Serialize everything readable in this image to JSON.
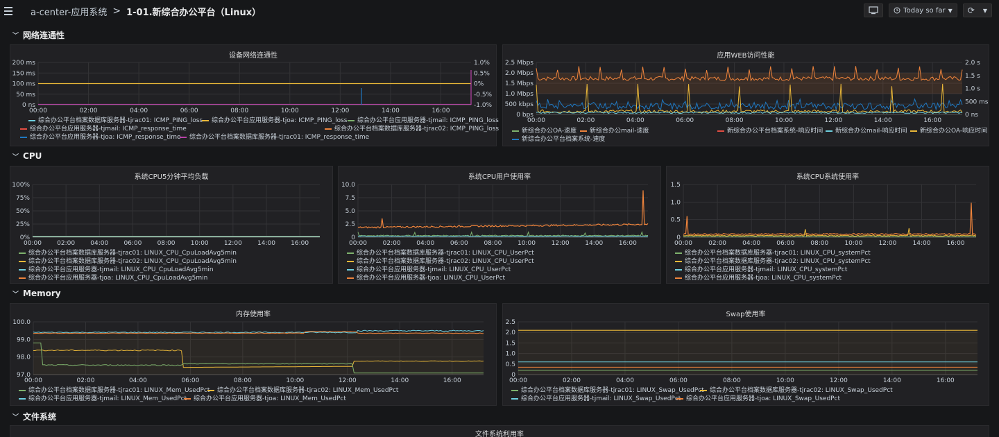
{
  "nav": {
    "folder": "a-center-应用系统",
    "separator": ">",
    "title": "1-01.新综合办公平台（Linux）",
    "time_range": "Today so far"
  },
  "colors": {
    "green": "#7eb26d",
    "yellow": "#eab839",
    "cyan": "#6ed0e0",
    "orange": "#ef843c",
    "red": "#e24d42",
    "blue": "#1f78c1",
    "purple": "#ba43a9"
  },
  "rows": {
    "network": "网络连通性",
    "cpu": "CPU",
    "memory": "Memory",
    "fs": "文件系统"
  },
  "x_ticks": [
    "00:00",
    "02:00",
    "04:00",
    "06:00",
    "08:00",
    "10:00",
    "12:00",
    "14:00",
    "16:00"
  ],
  "panels": {
    "ping": {
      "title": "设备网络连通性",
      "y_left": [
        "200 ms",
        "150 ms",
        "100 ms",
        "50 ms",
        "0 ns"
      ],
      "y_right": [
        "1.0%",
        "0.5%",
        "0%",
        "-0.5%",
        "-1.0%"
      ],
      "legend": [
        {
          "label": "综合办公平台档案数据库服务器-tjrac01: ICMP_PING_loss",
          "color": "#6ed0e0"
        },
        {
          "label": "综合办公平台应用服务器-tjoa: ICMP_PING_loss",
          "color": "#eab839"
        },
        {
          "label": "综合办公平台应用服务器-tjmail: ICMP_PING_loss",
          "color": "#7eb26d"
        },
        {
          "label": "综合办公平台应用服务器-tjmail: ICMP_response_time",
          "color": "#e24d42"
        },
        {
          "label": "综合办公平台档案数据库服务器-tjrac02: ICMP_PING_loss",
          "color": "#ef843c"
        },
        {
          "label": "综合办公平台应用服务器-tjoa: ICMP_response_time",
          "color": "#1f78c1"
        },
        {
          "label": "综合办公平台档案数据库服务器-tjrac01: ICMP_response_time",
          "color": "#ba43a9"
        }
      ]
    },
    "web": {
      "title": "应用WEB访问性能",
      "y_left": [
        "2.5 Mbps",
        "2.0 Mbps",
        "1.5 Mbps",
        "1.0 Mbps",
        "500 kbps",
        "0 bps"
      ],
      "y_right": [
        "2.0 s",
        "1.5 s",
        "1.0 s",
        "500 ms",
        "0 ns"
      ],
      "legend": [
        {
          "label": "新综合办公OA-速度",
          "color": "#7eb26d"
        },
        {
          "label": "新综合办公mail-速度",
          "color": "#ef843c"
        },
        {
          "label": "新综合办公平台档案系统-响应时间",
          "color": "#e24d42"
        },
        {
          "label": "新综合办公mail-响应时间",
          "color": "#6ed0e0"
        },
        {
          "label": "新综合办公OA-响应时间",
          "color": "#eab839"
        },
        {
          "label": "新综合办公平台档案系统-速度",
          "color": "#1f78c1"
        }
      ]
    },
    "load": {
      "title": "系统CPU5分钟平均负载",
      "y_left": [
        "100%",
        "75%",
        "50%",
        "25%",
        "0%"
      ],
      "legend": [
        {
          "label": "综合办公平台档案数据库服务器-tjrac01: LINUX_CPU_CpuLoadAvg5min",
          "color": "#7eb26d"
        },
        {
          "label": "综合办公平台档案数据库服务器-tjrac02: LINUX_CPU_CpuLoadAvg5min",
          "color": "#eab839"
        },
        {
          "label": "综合办公平台应用服务器-tjmail: LINUX_CPU_CpuLoadAvg5min",
          "color": "#6ed0e0"
        },
        {
          "label": "综合办公平台应用服务器-tjoa: LINUX_CPU_CpuLoadAvg5min",
          "color": "#ef843c"
        }
      ]
    },
    "cpuuser": {
      "title": "系统CPU用户使用率",
      "y_left": [
        "10.0",
        "7.5",
        "5.0",
        "2.5",
        "0"
      ],
      "legend": [
        {
          "label": "综合办公平台档案数据库服务器-tjrac01: LINUX_CPU_UserPct",
          "color": "#7eb26d"
        },
        {
          "label": "综合办公平台档案数据库服务器-tjrac02: LINUX_CPU_UserPct",
          "color": "#eab839"
        },
        {
          "label": "综合办公平台应用服务器-tjmail: LINUX_CPU_UserPct",
          "color": "#6ed0e0"
        },
        {
          "label": "综合办公平台应用服务器-tjoa: LINUX_CPU_UserPct",
          "color": "#ef843c"
        }
      ]
    },
    "cpusys": {
      "title": "系统CPU系统使用率",
      "y_left": [
        "1.5",
        "1.0",
        "0.5",
        "0"
      ],
      "legend": [
        {
          "label": "综合办公平台档案数据库服务器-tjrac01: LINUX_CPU_systemPct",
          "color": "#7eb26d"
        },
        {
          "label": "综合办公平台档案数据库服务器-tjrac02: LINUX_CPU_systemPct",
          "color": "#eab839"
        },
        {
          "label": "综合办公平台应用服务器-tjmail: LINUX_CPU_systemPct",
          "color": "#6ed0e0"
        },
        {
          "label": "综合办公平台应用服务器-tjoa: LINUX_CPU_systemPct",
          "color": "#ef843c"
        }
      ]
    },
    "mem": {
      "title": "内存使用率",
      "y_left": [
        "100.0",
        "99.0",
        "98.0",
        "97.0"
      ],
      "legend": [
        {
          "label": "综合办公平台档案数据库服务器-tjrac01: LINUX_Mem_UsedPct",
          "color": "#7eb26d"
        },
        {
          "label": "综合办公平台档案数据库服务器-tjrac02: LINUX_Mem_UsedPct",
          "color": "#eab839"
        },
        {
          "label": "综合办公平台应用服务器-tjmail: LINUX_Mem_UsedPct",
          "color": "#6ed0e0"
        },
        {
          "label": "综合办公平台应用服务器-tjoa: LINUX_Mem_UsedPct",
          "color": "#ef843c"
        }
      ]
    },
    "swap": {
      "title": "Swap使用率",
      "y_left": [
        "2.5",
        "2.0",
        "1.5",
        "1.0",
        "0.5",
        "0"
      ],
      "legend": [
        {
          "label": "综合办公平台档案数据库服务器-tjrac01: LINUX_Swap_UsedPct",
          "color": "#7eb26d"
        },
        {
          "label": "综合办公平台档案数据库服务器-tjrac02: LINUX_Swap_UsedPct",
          "color": "#eab839"
        },
        {
          "label": "综合办公平台应用服务器-tjmail: LINUX_Swap_UsedPct",
          "color": "#6ed0e0"
        },
        {
          "label": "综合办公平台应用服务器-tjoa: LINUX_Swap_UsedPct",
          "color": "#ef843c"
        }
      ]
    },
    "fs": {
      "title": "文件系统利用率"
    }
  }
}
